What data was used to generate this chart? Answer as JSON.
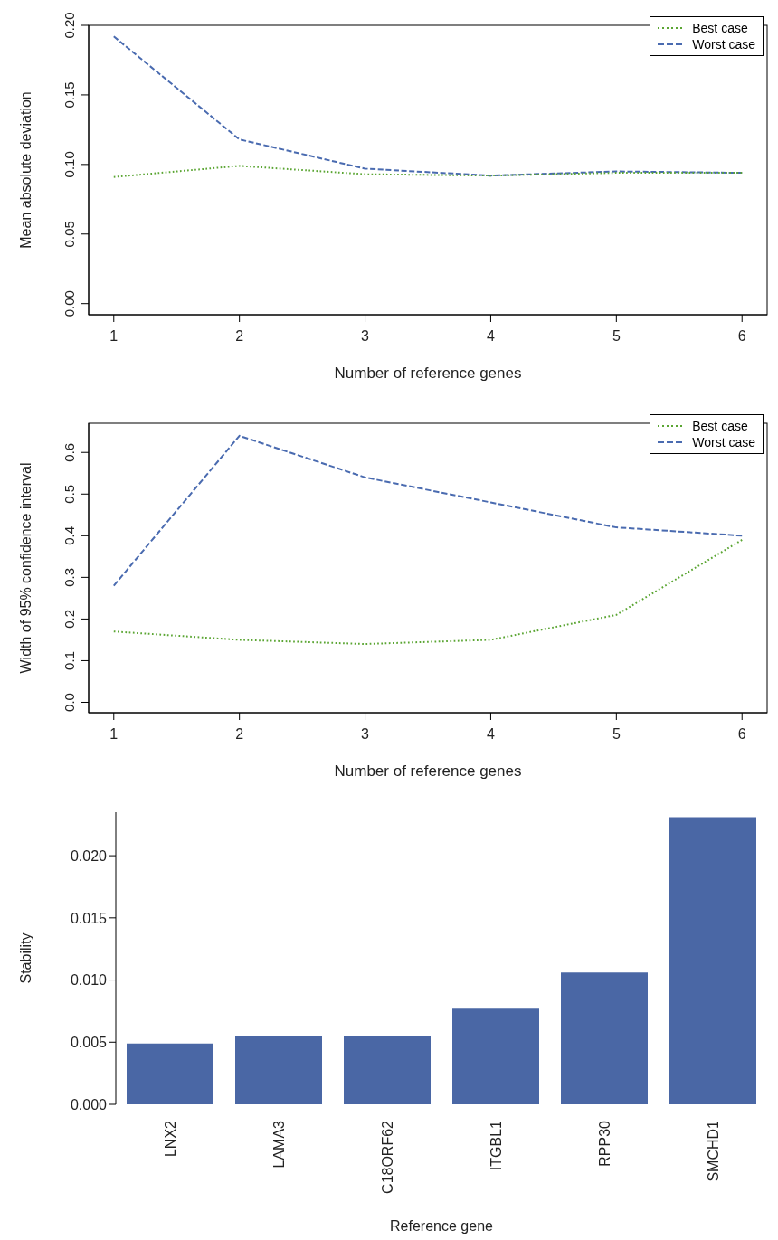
{
  "chart_data": [
    {
      "type": "line",
      "xlabel": "Number of reference genes",
      "ylabel": "Mean absolute deviation",
      "x": [
        1,
        2,
        3,
        4,
        5,
        6
      ],
      "xlim": [
        0.8,
        6.2
      ],
      "xticks": [
        1,
        2,
        3,
        4,
        5,
        6
      ],
      "ylim": [
        -0.008,
        0.2
      ],
      "yticks": [
        {
          "value": 0,
          "label": "0.00"
        },
        {
          "value": 0.05,
          "label": "0.05"
        },
        {
          "value": 0.1,
          "label": "0.10"
        },
        {
          "value": 0.15,
          "label": "0.15"
        },
        {
          "value": 0.2,
          "label": "0.20"
        }
      ],
      "grid": false,
      "legend": "top right",
      "marker": "none",
      "series": [
        {
          "name": "Best case",
          "color": "#5aa532",
          "line_style": "dotted",
          "values": [
            0.091,
            0.099,
            0.093,
            0.092,
            0.094,
            0.094
          ]
        },
        {
          "name": "Worst case",
          "color": "#4a6bb0",
          "line_style": "dashed",
          "values": [
            0.192,
            0.118,
            0.097,
            0.092,
            0.095,
            0.094
          ]
        }
      ]
    },
    {
      "type": "line",
      "xlabel": "Number of reference genes",
      "ylabel": "Width of 95% confidence interval",
      "x": [
        1,
        2,
        3,
        4,
        5,
        6
      ],
      "xlim": [
        0.8,
        6.2
      ],
      "xticks": [
        1,
        2,
        3,
        4,
        5,
        6
      ],
      "ylim": [
        -0.025,
        0.67
      ],
      "yticks": [
        {
          "value": 0,
          "label": "0.0"
        },
        {
          "value": 0.1,
          "label": "0.1"
        },
        {
          "value": 0.2,
          "label": "0.2"
        },
        {
          "value": 0.3,
          "label": "0.3"
        },
        {
          "value": 0.4,
          "label": "0.4"
        },
        {
          "value": 0.5,
          "label": "0.5"
        },
        {
          "value": 0.6,
          "label": "0.6"
        }
      ],
      "grid": false,
      "legend": "top right",
      "marker": "none",
      "series": [
        {
          "name": "Best case",
          "color": "#5aa532",
          "line_style": "dotted",
          "values": [
            0.17,
            0.15,
            0.14,
            0.15,
            0.21,
            0.39
          ]
        },
        {
          "name": "Worst case",
          "color": "#4a6bb0",
          "line_style": "dashed",
          "values": [
            0.28,
            0.64,
            0.54,
            0.48,
            0.42,
            0.4
          ]
        }
      ]
    },
    {
      "type": "bar",
      "xlabel": "Reference gene",
      "ylabel": "Stability",
      "categories": [
        "LNX2",
        "LAMA3",
        "C18ORF62",
        "ITGBL1",
        "RPP30",
        "SMCHD1"
      ],
      "values": [
        0.0049,
        0.0055,
        0.0055,
        0.0077,
        0.0106,
        0.0231
      ],
      "color": "#4a67a5",
      "ylim": [
        0,
        0.0235
      ],
      "yticks": [
        {
          "value": 0,
          "label": "0.000"
        },
        {
          "value": 0.005,
          "label": "0.005"
        },
        {
          "value": 0.01,
          "label": "0.010"
        },
        {
          "value": 0.015,
          "label": "0.015"
        },
        {
          "value": 0.02,
          "label": "0.020"
        }
      ],
      "grid": false
    }
  ]
}
